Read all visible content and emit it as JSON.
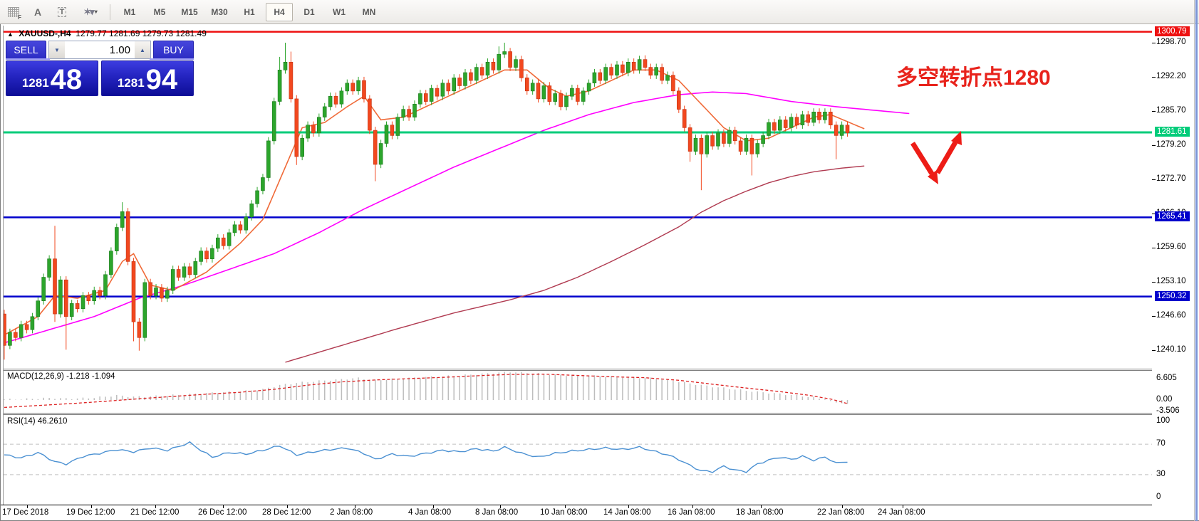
{
  "toolbar": {
    "icons": [
      {
        "name": "indicator-grid-icon",
        "label": "F"
      },
      {
        "name": "text-label-icon",
        "label": "A"
      },
      {
        "name": "text-box-icon",
        "label": "T"
      },
      {
        "name": "shapes-icon",
        "label": "❖"
      }
    ],
    "timeframes": [
      "M1",
      "M5",
      "M15",
      "M30",
      "H1",
      "H4",
      "D1",
      "W1",
      "MN"
    ],
    "active_timeframe": "H4"
  },
  "chart": {
    "symbol_header": {
      "symbol": "XAUUSD-,H4",
      "open": "1279.77",
      "high": "1281.69",
      "low": "1279.73",
      "close": "1281.49"
    },
    "trade_panel": {
      "sell_label": "SELL",
      "buy_label": "BUY",
      "volume": "1.00",
      "sell_price_small": "1281",
      "sell_price_big": "48",
      "buy_price_small": "1281",
      "buy_price_big": "94"
    },
    "annotation": "多空转折点1280",
    "level_badges": [
      {
        "name": "resistance-line",
        "price": 1300.79,
        "label": "1300.79",
        "color": "#ee1111"
      },
      {
        "name": "pivot-line",
        "price": 1281.61,
        "label": "1281.61",
        "color": "#00cc7a"
      },
      {
        "name": "support-line-1",
        "price": 1265.41,
        "label": "1265.41",
        "color": "#0000cc"
      },
      {
        "name": "support-line-2",
        "price": 1250.32,
        "label": "1250.32",
        "color": "#0000cc"
      }
    ]
  },
  "macd": {
    "header": "MACD(12,26,9) -1.218 -1.094",
    "axis": [
      [
        6.605,
        "6.605"
      ],
      [
        0,
        "0.00"
      ],
      [
        -3.506,
        "-3.506"
      ]
    ]
  },
  "rsi": {
    "header": "RSI(14) 46.2610",
    "axis": [
      [
        100,
        "100"
      ],
      [
        70,
        "70"
      ],
      [
        30,
        "30"
      ],
      [
        0,
        "0"
      ]
    ],
    "levels": [
      70,
      30
    ]
  },
  "chart_data": {
    "type": "candlestick",
    "symbol": "XAUUSD",
    "timeframe": "H4",
    "price_axis_ticks": [
      1298.7,
      1292.2,
      1285.7,
      1279.2,
      1272.7,
      1266.1,
      1259.6,
      1253.1,
      1246.6,
      1240.1
    ],
    "ylim_top_price": 1298.7,
    "time_axis": [
      [
        3,
        "17 Dec 2018"
      ],
      [
        93,
        "19 Dec 12:00"
      ],
      [
        183,
        "21 Dec 12:00"
      ],
      [
        278,
        "26 Dec 12:00"
      ],
      [
        368,
        "28 Dec 12:00"
      ],
      [
        463,
        "2 Jan 08:00"
      ],
      [
        573,
        "4 Jan 08:00"
      ],
      [
        667,
        "8 Jan 08:00"
      ],
      [
        758,
        "10 Jan 08:00"
      ],
      [
        847,
        "14 Jan 08:00"
      ],
      [
        937,
        "16 Jan 08:00"
      ],
      [
        1033,
        "18 Jan 08:00"
      ],
      [
        1147,
        "22 Jan 08:00"
      ],
      [
        1232,
        "24 Jan 08:00"
      ]
    ],
    "first_open": 1247.0,
    "closes": [
      1241.0,
      1243.5,
      1242.5,
      1245.0,
      1244.0,
      1246.5,
      1249.5,
      1254.0,
      1257.5,
      1247.0,
      1253.5,
      1246.5,
      1249.0,
      1248.0,
      1250.5,
      1249.5,
      1251.5,
      1250.5,
      1254.5,
      1259.0,
      1263.5,
      1266.5,
      1257.0,
      1245.5,
      1242.5,
      1253.0,
      1250.5,
      1252.0,
      1250.0,
      1251.5,
      1255.5,
      1254.0,
      1256.0,
      1254.5,
      1257.0,
      1259.0,
      1257.5,
      1259.5,
      1261.5,
      1260.0,
      1262.5,
      1264.0,
      1263.0,
      1265.5,
      1268.0,
      1270.5,
      1273.0,
      1280.0,
      1287.5,
      1293.5,
      1295.0,
      1288.0,
      1277.0,
      1280.5,
      1283.0,
      1281.5,
      1284.5,
      1286.5,
      1288.5,
      1287.0,
      1289.5,
      1291.0,
      1289.5,
      1291.5,
      1288.0,
      1282.0,
      1275.5,
      1279.5,
      1283.0,
      1281.0,
      1284.5,
      1286.0,
      1284.5,
      1287.0,
      1289.0,
      1287.5,
      1290.0,
      1288.5,
      1291.0,
      1289.5,
      1292.0,
      1290.5,
      1293.0,
      1291.5,
      1294.0,
      1292.5,
      1295.0,
      1293.5,
      1296.5,
      1297.0,
      1294.0,
      1295.5,
      1292.0,
      1289.5,
      1291.0,
      1288.0,
      1290.5,
      1287.5,
      1289.0,
      1286.5,
      1288.5,
      1290.0,
      1287.5,
      1289.5,
      1291.0,
      1293.0,
      1291.5,
      1294.0,
      1292.5,
      1294.5,
      1293.0,
      1295.0,
      1293.5,
      1295.5,
      1294.0,
      1292.5,
      1294.0,
      1291.5,
      1292.5,
      1289.5,
      1286.0,
      1282.5,
      1278.0,
      1280.5,
      1277.5,
      1281.0,
      1279.0,
      1281.5,
      1279.5,
      1282.0,
      1280.0,
      1278.0,
      1280.5,
      1277.5,
      1279.5,
      1281.0,
      1283.5,
      1282.0,
      1284.0,
      1282.5,
      1284.5,
      1283.0,
      1285.0,
      1283.5,
      1285.5,
      1284.0,
      1285.5,
      1283.0,
      1281.0,
      1283.0,
      1281.5
    ],
    "wick_overrides": {
      "0": [
        1247.8,
        1238.3
      ],
      "9": [
        1263.8,
        1245.5
      ],
      "11": [
        null,
        1240.2
      ],
      "21": [
        1268.3,
        null
      ],
      "23": [
        null,
        1241.8
      ],
      "24": [
        null,
        1240.0
      ],
      "49": [
        1296.0,
        null
      ],
      "50": [
        1298.7,
        null
      ],
      "51": [
        1297.0,
        null
      ],
      "52": [
        null,
        1275.4
      ],
      "66": [
        null,
        1272.3
      ],
      "88": [
        1298.0,
        null
      ],
      "89": [
        1298.7,
        null
      ],
      "114": [
        1296.3,
        null
      ],
      "122": [
        null,
        1276.0
      ],
      "124": [
        null,
        1270.6
      ],
      "133": [
        null,
        1273.4
      ],
      "148": [
        null,
        1276.5
      ]
    },
    "ma_fast": [
      [
        0,
        1243.0
      ],
      [
        6,
        1246.5
      ],
      [
        9,
        1250.5
      ],
      [
        13,
        1250.0
      ],
      [
        18,
        1251.5
      ],
      [
        21,
        1257.0
      ],
      [
        23,
        1258.5
      ],
      [
        26,
        1252.5
      ],
      [
        30,
        1251.5
      ],
      [
        36,
        1255.0
      ],
      [
        42,
        1260.5
      ],
      [
        46,
        1265.0
      ],
      [
        50,
        1275.0
      ],
      [
        53,
        1282.5
      ],
      [
        57,
        1283.5
      ],
      [
        61,
        1286.5
      ],
      [
        64,
        1288.5
      ],
      [
        67,
        1284.0
      ],
      [
        71,
        1284.5
      ],
      [
        76,
        1287.0
      ],
      [
        80,
        1289.0
      ],
      [
        84,
        1291.0
      ],
      [
        89,
        1293.5
      ],
      [
        93,
        1293.5
      ],
      [
        97,
        1290.0
      ],
      [
        100,
        1288.5
      ],
      [
        104,
        1289.5
      ],
      [
        108,
        1291.5
      ],
      [
        112,
        1293.5
      ],
      [
        116,
        1293.5
      ],
      [
        120,
        1291.5
      ],
      [
        124,
        1287.0
      ],
      [
        128,
        1282.5
      ],
      [
        132,
        1280.0
      ],
      [
        136,
        1280.5
      ],
      [
        140,
        1282.5
      ],
      [
        144,
        1284.5
      ],
      [
        147,
        1285.0
      ],
      [
        153,
        1282.3
      ]
    ],
    "ma_mid": [
      [
        0,
        1241.5
      ],
      [
        8,
        1244.0
      ],
      [
        16,
        1246.5
      ],
      [
        24,
        1250.0
      ],
      [
        32,
        1252.5
      ],
      [
        40,
        1255.5
      ],
      [
        48,
        1258.5
      ],
      [
        56,
        1262.5
      ],
      [
        64,
        1267.0
      ],
      [
        72,
        1271.0
      ],
      [
        80,
        1275.0
      ],
      [
        88,
        1278.5
      ],
      [
        96,
        1282.0
      ],
      [
        104,
        1285.0
      ],
      [
        112,
        1287.3
      ],
      [
        120,
        1288.8
      ],
      [
        126,
        1289.3
      ],
      [
        132,
        1289.0
      ],
      [
        140,
        1287.5
      ],
      [
        148,
        1286.5
      ],
      [
        155,
        1285.8
      ],
      [
        161,
        1285.2
      ]
    ],
    "ma_slow": [
      [
        50,
        1237.8
      ],
      [
        60,
        1241.0
      ],
      [
        70,
        1244.2
      ],
      [
        80,
        1247.2
      ],
      [
        90,
        1249.7
      ],
      [
        96,
        1251.5
      ],
      [
        102,
        1254.0
      ],
      [
        108,
        1257.0
      ],
      [
        114,
        1260.2
      ],
      [
        120,
        1263.6
      ],
      [
        124,
        1266.4
      ],
      [
        128,
        1268.6
      ],
      [
        132,
        1270.4
      ],
      [
        136,
        1272.0
      ],
      [
        140,
        1273.2
      ],
      [
        144,
        1274.1
      ],
      [
        149,
        1274.8
      ],
      [
        153,
        1275.2
      ]
    ],
    "macd_hist": [
      [
        0,
        0.15
      ],
      [
        4,
        0.3
      ],
      [
        8,
        0.6
      ],
      [
        12,
        0.4
      ],
      [
        16,
        0.7
      ],
      [
        20,
        1.4
      ],
      [
        23,
        1.0
      ],
      [
        27,
        1.2
      ],
      [
        31,
        1.6
      ],
      [
        35,
        2.0
      ],
      [
        39,
        2.4
      ],
      [
        43,
        2.8
      ],
      [
        46,
        3.3
      ],
      [
        49,
        4.6
      ],
      [
        52,
        5.3
      ],
      [
        56,
        5.9
      ],
      [
        60,
        6.4
      ],
      [
        63,
        6.8
      ],
      [
        66,
        6.1
      ],
      [
        70,
        6.6
      ],
      [
        74,
        7.0
      ],
      [
        78,
        7.3
      ],
      [
        82,
        7.7
      ],
      [
        86,
        8.2
      ],
      [
        90,
        8.7
      ],
      [
        94,
        8.3
      ],
      [
        98,
        7.8
      ],
      [
        102,
        7.5
      ],
      [
        106,
        7.4
      ],
      [
        110,
        7.1
      ],
      [
        114,
        6.9
      ],
      [
        118,
        6.3
      ],
      [
        122,
        5.1
      ],
      [
        126,
        4.1
      ],
      [
        130,
        3.3
      ],
      [
        134,
        2.5
      ],
      [
        138,
        1.9
      ],
      [
        141,
        1.4
      ],
      [
        144,
        0.8
      ],
      [
        146,
        0.2
      ],
      [
        148,
        -0.8
      ],
      [
        150,
        -1.218
      ]
    ],
    "macd_signal": [
      [
        0,
        -2.3
      ],
      [
        6,
        -1.7
      ],
      [
        12,
        -1.1
      ],
      [
        18,
        -0.4
      ],
      [
        24,
        0.4
      ],
      [
        30,
        1.1
      ],
      [
        36,
        1.8
      ],
      [
        42,
        2.4
      ],
      [
        48,
        3.3
      ],
      [
        54,
        4.6
      ],
      [
        60,
        5.6
      ],
      [
        66,
        6.2
      ],
      [
        72,
        6.6
      ],
      [
        78,
        7.0
      ],
      [
        84,
        7.5
      ],
      [
        90,
        7.9
      ],
      [
        96,
        8.0
      ],
      [
        102,
        7.6
      ],
      [
        108,
        7.2
      ],
      [
        114,
        6.9
      ],
      [
        120,
        6.1
      ],
      [
        126,
        4.9
      ],
      [
        132,
        3.7
      ],
      [
        138,
        2.6
      ],
      [
        143,
        1.5
      ],
      [
        147,
        0.3
      ],
      [
        150,
        -1.094
      ]
    ],
    "rsi_series": [
      [
        0,
        56
      ],
      [
        3,
        52
      ],
      [
        6,
        59
      ],
      [
        9,
        47
      ],
      [
        11,
        44
      ],
      [
        14,
        54
      ],
      [
        17,
        58
      ],
      [
        20,
        63
      ],
      [
        23,
        60
      ],
      [
        26,
        65
      ],
      [
        29,
        62
      ],
      [
        31,
        67
      ],
      [
        33,
        72
      ],
      [
        35,
        62
      ],
      [
        37,
        53
      ],
      [
        40,
        59
      ],
      [
        43,
        57
      ],
      [
        46,
        62
      ],
      [
        49,
        68
      ],
      [
        52,
        56
      ],
      [
        55,
        60
      ],
      [
        58,
        63
      ],
      [
        61,
        65
      ],
      [
        64,
        58
      ],
      [
        66,
        50
      ],
      [
        69,
        57
      ],
      [
        72,
        54
      ],
      [
        75,
        58
      ],
      [
        78,
        62
      ],
      [
        81,
        60
      ],
      [
        84,
        64
      ],
      [
        87,
        61
      ],
      [
        89,
        66
      ],
      [
        92,
        58
      ],
      [
        95,
        53
      ],
      [
        98,
        58
      ],
      [
        101,
        61
      ],
      [
        104,
        63
      ],
      [
        107,
        65
      ],
      [
        110,
        63
      ],
      [
        113,
        66
      ],
      [
        116,
        60
      ],
      [
        118,
        56
      ],
      [
        120,
        50
      ],
      [
        122,
        42
      ],
      [
        124,
        35
      ],
      [
        126,
        34
      ],
      [
        128,
        41
      ],
      [
        130,
        36
      ],
      [
        132,
        34
      ],
      [
        134,
        44
      ],
      [
        136,
        49
      ],
      [
        138,
        53
      ],
      [
        140,
        50
      ],
      [
        142,
        54
      ],
      [
        144,
        49
      ],
      [
        146,
        53
      ],
      [
        148,
        46
      ],
      [
        150,
        46.26
      ]
    ]
  },
  "colors": {
    "candle_up": "#2ca52c",
    "candle_up_edge": "#1d7a1d",
    "candle_down": "#f2481f",
    "candle_down_edge": "#c23312",
    "ma_fast": "#f06a38",
    "ma_mid": "#ff00ff",
    "ma_slow": "#b03a50",
    "line_red": "#ee1111",
    "line_green": "#00cc7a",
    "line_blue": "#0000cc",
    "macd_hist": "#bdbdbd",
    "macd_signal": "#dd2222",
    "rsi_line": "#4a90d2",
    "rsi_level": "#c0c0c0",
    "annotation": "#e8231c",
    "arrow": "#ed1c16",
    "trade_blue": "#2d2dc4"
  }
}
